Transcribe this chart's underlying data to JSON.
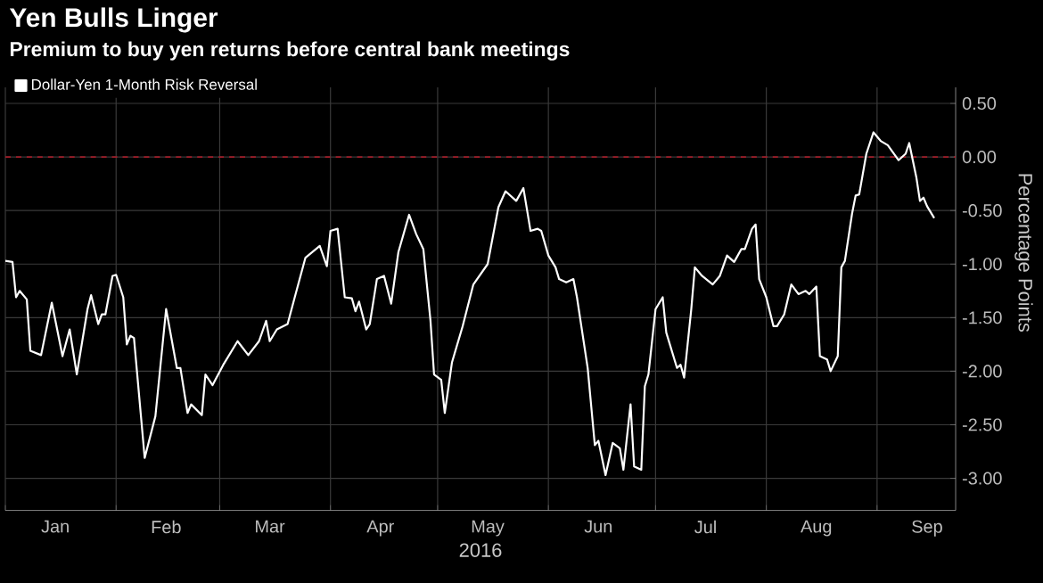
{
  "chart_data": {
    "type": "line",
    "title": "Yen Bulls Linger",
    "subtitle": "Premium to buy yen returns before central bank meetings",
    "xlabel": "2016",
    "ylabel": "Percentage Points",
    "x": [
      "2016-01-01",
      "2016-01-03",
      "2016-01-04",
      "2016-01-05",
      "2016-01-07",
      "2016-01-08",
      "2016-01-11",
      "2016-01-14",
      "2016-01-17",
      "2016-01-19",
      "2016-01-21",
      "2016-01-24",
      "2016-01-25",
      "2016-01-27",
      "2016-01-28",
      "2016-01-29",
      "2016-01-31",
      "2016-02-01",
      "2016-02-03",
      "2016-02-04",
      "2016-02-05",
      "2016-02-06",
      "2016-02-09",
      "2016-02-12",
      "2016-02-15",
      "2016-02-18",
      "2016-02-19",
      "2016-02-21",
      "2016-02-22",
      "2016-02-25",
      "2016-02-26",
      "2016-02-28",
      "2016-03-02",
      "2016-03-06",
      "2016-03-09",
      "2016-03-12",
      "2016-03-14",
      "2016-03-15",
      "2016-03-17",
      "2016-03-20",
      "2016-03-22",
      "2016-03-25",
      "2016-03-29",
      "2016-03-31",
      "2016-04-01",
      "2016-04-03",
      "2016-04-05",
      "2016-04-07",
      "2016-04-08",
      "2016-04-09",
      "2016-04-11",
      "2016-04-12",
      "2016-04-14",
      "2016-04-16",
      "2016-04-18",
      "2016-04-20",
      "2016-04-23",
      "2016-04-25",
      "2016-04-27",
      "2016-04-29",
      "2016-04-30",
      "2016-05-02",
      "2016-05-03",
      "2016-05-05",
      "2016-05-08",
      "2016-05-11",
      "2016-05-15",
      "2016-05-18",
      "2016-05-20",
      "2016-05-23",
      "2016-05-25",
      "2016-05-27",
      "2016-05-29",
      "2016-05-30",
      "2016-06-01",
      "2016-06-03",
      "2016-06-04",
      "2016-06-06",
      "2016-06-08",
      "2016-06-09",
      "2016-06-12",
      "2016-06-14",
      "2016-06-15",
      "2016-06-17",
      "2016-06-19",
      "2016-06-21",
      "2016-06-22",
      "2016-06-24",
      "2016-06-25",
      "2016-06-27",
      "2016-06-28",
      "2016-06-29",
      "2016-07-01",
      "2016-07-03",
      "2016-07-04",
      "2016-07-07",
      "2016-07-08",
      "2016-07-09",
      "2016-07-11",
      "2016-07-12",
      "2016-07-14",
      "2016-07-17",
      "2016-07-19",
      "2016-07-21",
      "2016-07-23",
      "2016-07-25",
      "2016-07-26",
      "2016-07-28",
      "2016-07-29",
      "2016-07-30",
      "2016-08-01",
      "2016-08-03",
      "2016-08-04",
      "2016-08-06",
      "2016-08-08",
      "2016-08-10",
      "2016-08-12",
      "2016-08-13",
      "2016-08-15",
      "2016-08-16",
      "2016-08-18",
      "2016-08-19",
      "2016-08-21",
      "2016-08-22",
      "2016-08-23",
      "2016-08-25",
      "2016-08-26",
      "2016-08-27",
      "2016-08-29",
      "2016-08-31",
      "2016-09-02",
      "2016-09-04",
      "2016-09-07",
      "2016-09-09",
      "2016-09-10",
      "2016-09-12",
      "2016-09-13",
      "2016-09-14",
      "2016-09-15",
      "2016-09-17"
    ],
    "series": [
      {
        "name": "Dollar-Yen 1-Month Risk Reversal",
        "color": "#ffffff",
        "values": [
          -0.97,
          -0.98,
          -1.31,
          -1.25,
          -1.33,
          -1.81,
          -1.85,
          -1.36,
          -1.86,
          -1.61,
          -2.03,
          -1.42,
          -1.29,
          -1.56,
          -1.47,
          -1.47,
          -1.11,
          -1.1,
          -1.31,
          -1.75,
          -1.67,
          -1.69,
          -2.81,
          -2.42,
          -1.42,
          -1.97,
          -1.97,
          -2.39,
          -2.31,
          -2.41,
          -2.03,
          -2.13,
          -1.94,
          -1.72,
          -1.85,
          -1.72,
          -1.53,
          -1.72,
          -1.61,
          -1.56,
          -1.31,
          -0.94,
          -0.83,
          -1.02,
          -0.69,
          -0.67,
          -1.31,
          -1.32,
          -1.44,
          -1.35,
          -1.61,
          -1.56,
          -1.14,
          -1.11,
          -1.37,
          -0.89,
          -0.54,
          -0.72,
          -0.86,
          -1.53,
          -2.03,
          -2.08,
          -2.39,
          -1.92,
          -1.58,
          -1.19,
          -1.0,
          -0.47,
          -0.32,
          -0.41,
          -0.29,
          -0.69,
          -0.67,
          -0.69,
          -0.92,
          -1.03,
          -1.14,
          -1.17,
          -1.14,
          -1.31,
          -1.97,
          -2.69,
          -2.65,
          -2.97,
          -2.67,
          -2.72,
          -2.92,
          -2.31,
          -2.89,
          -2.92,
          -2.14,
          -2.03,
          -1.42,
          -1.31,
          -1.64,
          -1.97,
          -1.94,
          -2.06,
          -1.42,
          -1.03,
          -1.11,
          -1.19,
          -1.11,
          -0.92,
          -0.98,
          -0.86,
          -0.86,
          -0.67,
          -0.63,
          -1.14,
          -1.31,
          -1.58,
          -1.58,
          -1.47,
          -1.19,
          -1.28,
          -1.25,
          -1.28,
          -1.21,
          -1.86,
          -1.89,
          -2.0,
          -1.86,
          -1.03,
          -0.97,
          -0.53,
          -0.36,
          -0.35,
          0.03,
          0.23,
          0.15,
          0.11,
          -0.03,
          0.03,
          0.13,
          -0.19,
          -0.41,
          -0.38,
          -0.46,
          -0.57
        ]
      }
    ],
    "xlim": [
      "2016-01-01",
      "2016-09-23"
    ],
    "xticks": [
      {
        "value": "2016-01-01",
        "label": null
      },
      {
        "value": "2016-02-01",
        "label": null
      },
      {
        "value": "2016-03-01",
        "label": null
      },
      {
        "value": "2016-04-01",
        "label": null
      },
      {
        "value": "2016-05-01",
        "label": null
      },
      {
        "value": "2016-06-01",
        "label": null
      },
      {
        "value": "2016-07-01",
        "label": null
      },
      {
        "value": "2016-08-01",
        "label": null
      },
      {
        "value": "2016-09-01",
        "label": null
      },
      {
        "value": "2016-01-15",
        "label": "Jan"
      },
      {
        "value": "2016-02-15",
        "label": "Feb"
      },
      {
        "value": "2016-03-15",
        "label": "Mar"
      },
      {
        "value": "2016-04-15",
        "label": "Apr"
      },
      {
        "value": "2016-05-15",
        "label": "May"
      },
      {
        "value": "2016-06-15",
        "label": "Jun"
      },
      {
        "value": "2016-07-15",
        "label": "Jul"
      },
      {
        "value": "2016-08-15",
        "label": "Aug"
      },
      {
        "value": "2016-09-15",
        "label": "Sep"
      }
    ],
    "ylim": [
      -3.3,
      0.65
    ],
    "yticks": [
      {
        "value": 0.5,
        "label": "0.50"
      },
      {
        "value": 0,
        "label": "0.00"
      },
      {
        "value": -0.5,
        "label": "-0.50"
      },
      {
        "value": -1,
        "label": "-1.00"
      },
      {
        "value": -1.5,
        "label": "-1.50"
      },
      {
        "value": -2,
        "label": "-2.00"
      },
      {
        "value": -2.5,
        "label": "-2.50"
      },
      {
        "value": -3,
        "label": "-3.00"
      }
    ],
    "ref_lines": [
      {
        "axis": "y",
        "value": 0,
        "color": "#a01c28",
        "line_style": "dashed"
      }
    ],
    "grid": true,
    "legend": "top left",
    "marker": "none",
    "line_style": "solid"
  }
}
